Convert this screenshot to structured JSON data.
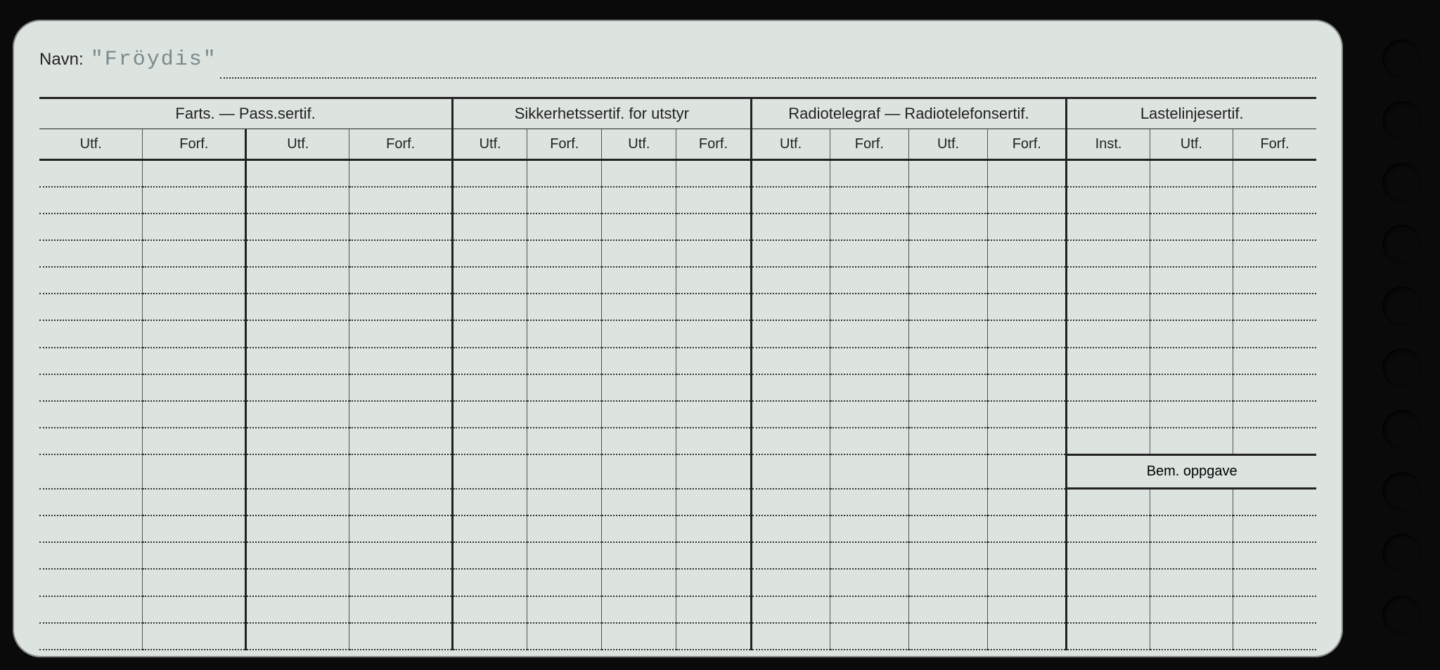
{
  "colors": {
    "page_bg": "#0a0a0a",
    "card_bg": "#dde3df",
    "line": "#222222",
    "dotted": "#333333",
    "faded_type": "#7a8a8c"
  },
  "name": {
    "label": "Navn:",
    "value": "\"Fröydis\""
  },
  "sections": [
    {
      "title": "Farts. — Pass.sertif.",
      "cols": [
        "Utf.",
        "Forf.",
        "Utf.",
        "Forf."
      ]
    },
    {
      "title": "Sikkerhetssertif. for utstyr",
      "cols": [
        "Utf.",
        "Forf.",
        "Utf.",
        "Forf."
      ]
    },
    {
      "title": "Radiotelegraf — Radiotelefonsertif.",
      "cols": [
        "Utf.",
        "Forf.",
        "Utf.",
        "Forf."
      ]
    },
    {
      "title": "Lastelinjesertif.",
      "cols": [
        "Inst.",
        "Utf.",
        "Forf."
      ]
    }
  ],
  "bem_label": "Bem. oppgave",
  "body_rows_before_bem": 11,
  "body_rows_after_bem": 6,
  "punch_hole_count": 10
}
